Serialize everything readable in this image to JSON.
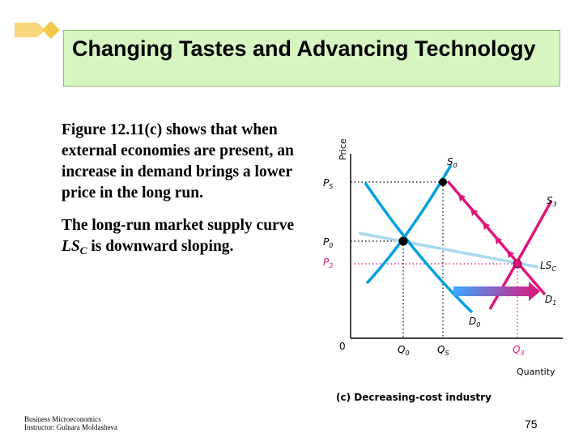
{
  "title": "Changing Tastes and Advancing Technology",
  "body": {
    "para1": "Figure 12.11(c) shows that when external economies are present, an increase in demand brings a lower price in the long run.",
    "para2_prefix": "The long-run market supply curve ",
    "para2_symbol": "LS",
    "para2_symbol_sub": "C",
    "para2_suffix": " is downward sloping."
  },
  "diagram": {
    "y_axis_label": "Price",
    "x_axis_label": "Quantity",
    "origin_label": "0",
    "caption": "(c) Decreasing-cost industry",
    "price_labels": {
      "ps": "P",
      "ps_sub": "S",
      "p0": "P",
      "p0_sub": "0",
      "p3": "P",
      "p3_sub": "3"
    },
    "quantity_labels": {
      "q0": "Q",
      "q0_sub": "0",
      "qs": "Q",
      "qs_sub": "S",
      "q3": "Q",
      "q3_sub": "3"
    },
    "curve_labels": {
      "s0": "S",
      "s0_sub": "0",
      "s3": "S",
      "s3_sub": "3",
      "lsc": "LS",
      "lsc_sub": "C",
      "d0": "D",
      "d0_sub": "0",
      "d1": "D",
      "d1_sub": "1"
    },
    "colors": {
      "supply": "#00a0e0",
      "demand": "#00a0e0",
      "new_curves": "#e0147a",
      "long_run_supply": "#a8d8f0",
      "arrow_start": "#3aa8ff",
      "arrow_end": "#e0147a"
    }
  },
  "footer": {
    "course": "Business Microeconomics",
    "instructor": "Instructor: Gulnara Moldasheva"
  },
  "page_number": "75"
}
